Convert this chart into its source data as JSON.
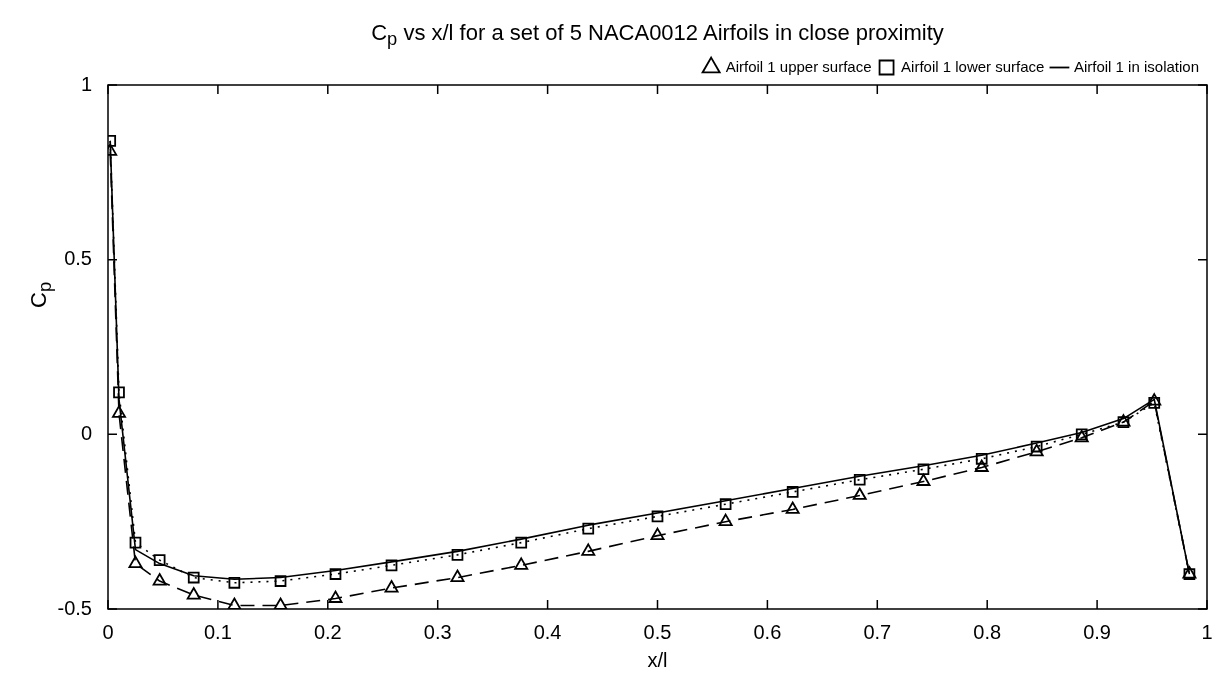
{
  "chart_data": {
    "type": "line",
    "title": "C$_{p}$ vs x/l for a set of 5 NACA0012 Airfoils in close proximity",
    "xlabel": "x/l",
    "ylabel": "C$_{p}$",
    "xlim": [
      0,
      1
    ],
    "xticks": [
      0,
      0.1,
      0.2,
      0.3,
      0.4,
      0.5,
      0.6,
      0.7,
      0.8,
      0.9,
      1
    ],
    "ylim": [
      -0.5,
      1
    ],
    "yticks": [
      -0.5,
      0,
      0.5,
      1
    ],
    "grid": false,
    "legend": "top right",
    "series": [
      {
        "name": "Airfoil 1 upper surface",
        "color": "#000000",
        "marker": "triangle",
        "line_style": "dashed",
        "x": [
          0.002,
          0.01,
          0.025,
          0.047,
          0.078,
          0.115,
          0.157,
          0.207,
          0.258,
          0.318,
          0.376,
          0.437,
          0.5,
          0.562,
          0.623,
          0.684,
          0.742,
          0.795,
          0.845,
          0.886,
          0.924,
          0.952,
          0.984
        ],
        "values": [
          0.81,
          0.06,
          -0.37,
          -0.42,
          -0.46,
          -0.49,
          -0.49,
          -0.47,
          -0.44,
          -0.41,
          -0.375,
          -0.335,
          -0.29,
          -0.25,
          -0.215,
          -0.175,
          -0.135,
          -0.095,
          -0.05,
          -0.01,
          0.035,
          0.095,
          -0.4
        ]
      },
      {
        "name": "Airfoil 1 lower surface",
        "color": "#000000",
        "marker": "square",
        "line_style": "dotted",
        "x": [
          0.002,
          0.01,
          0.025,
          0.047,
          0.078,
          0.115,
          0.157,
          0.207,
          0.258,
          0.318,
          0.376,
          0.437,
          0.5,
          0.562,
          0.623,
          0.684,
          0.742,
          0.795,
          0.845,
          0.886,
          0.924,
          0.952,
          0.984
        ],
        "values": [
          0.84,
          0.12,
          -0.31,
          -0.36,
          -0.41,
          -0.425,
          -0.42,
          -0.4,
          -0.375,
          -0.345,
          -0.31,
          -0.27,
          -0.235,
          -0.2,
          -0.165,
          -0.13,
          -0.1,
          -0.07,
          -0.035,
          0,
          0.035,
          0.09,
          -0.4
        ]
      },
      {
        "name": "Airfoil 1 in isolation",
        "color": "#000000",
        "marker": "none",
        "line_style": "solid",
        "x": [
          0.002,
          0.01,
          0.025,
          0.047,
          0.078,
          0.115,
          0.157,
          0.207,
          0.258,
          0.318,
          0.376,
          0.437,
          0.5,
          0.562,
          0.623,
          0.684,
          0.742,
          0.795,
          0.845,
          0.886,
          0.924,
          0.952,
          0.984
        ],
        "values": [
          0.84,
          0.1,
          -0.33,
          -0.37,
          -0.405,
          -0.415,
          -0.41,
          -0.39,
          -0.365,
          -0.335,
          -0.3,
          -0.26,
          -0.225,
          -0.19,
          -0.155,
          -0.12,
          -0.09,
          -0.06,
          -0.025,
          0.005,
          0.045,
          0.1,
          -0.4
        ]
      }
    ]
  }
}
